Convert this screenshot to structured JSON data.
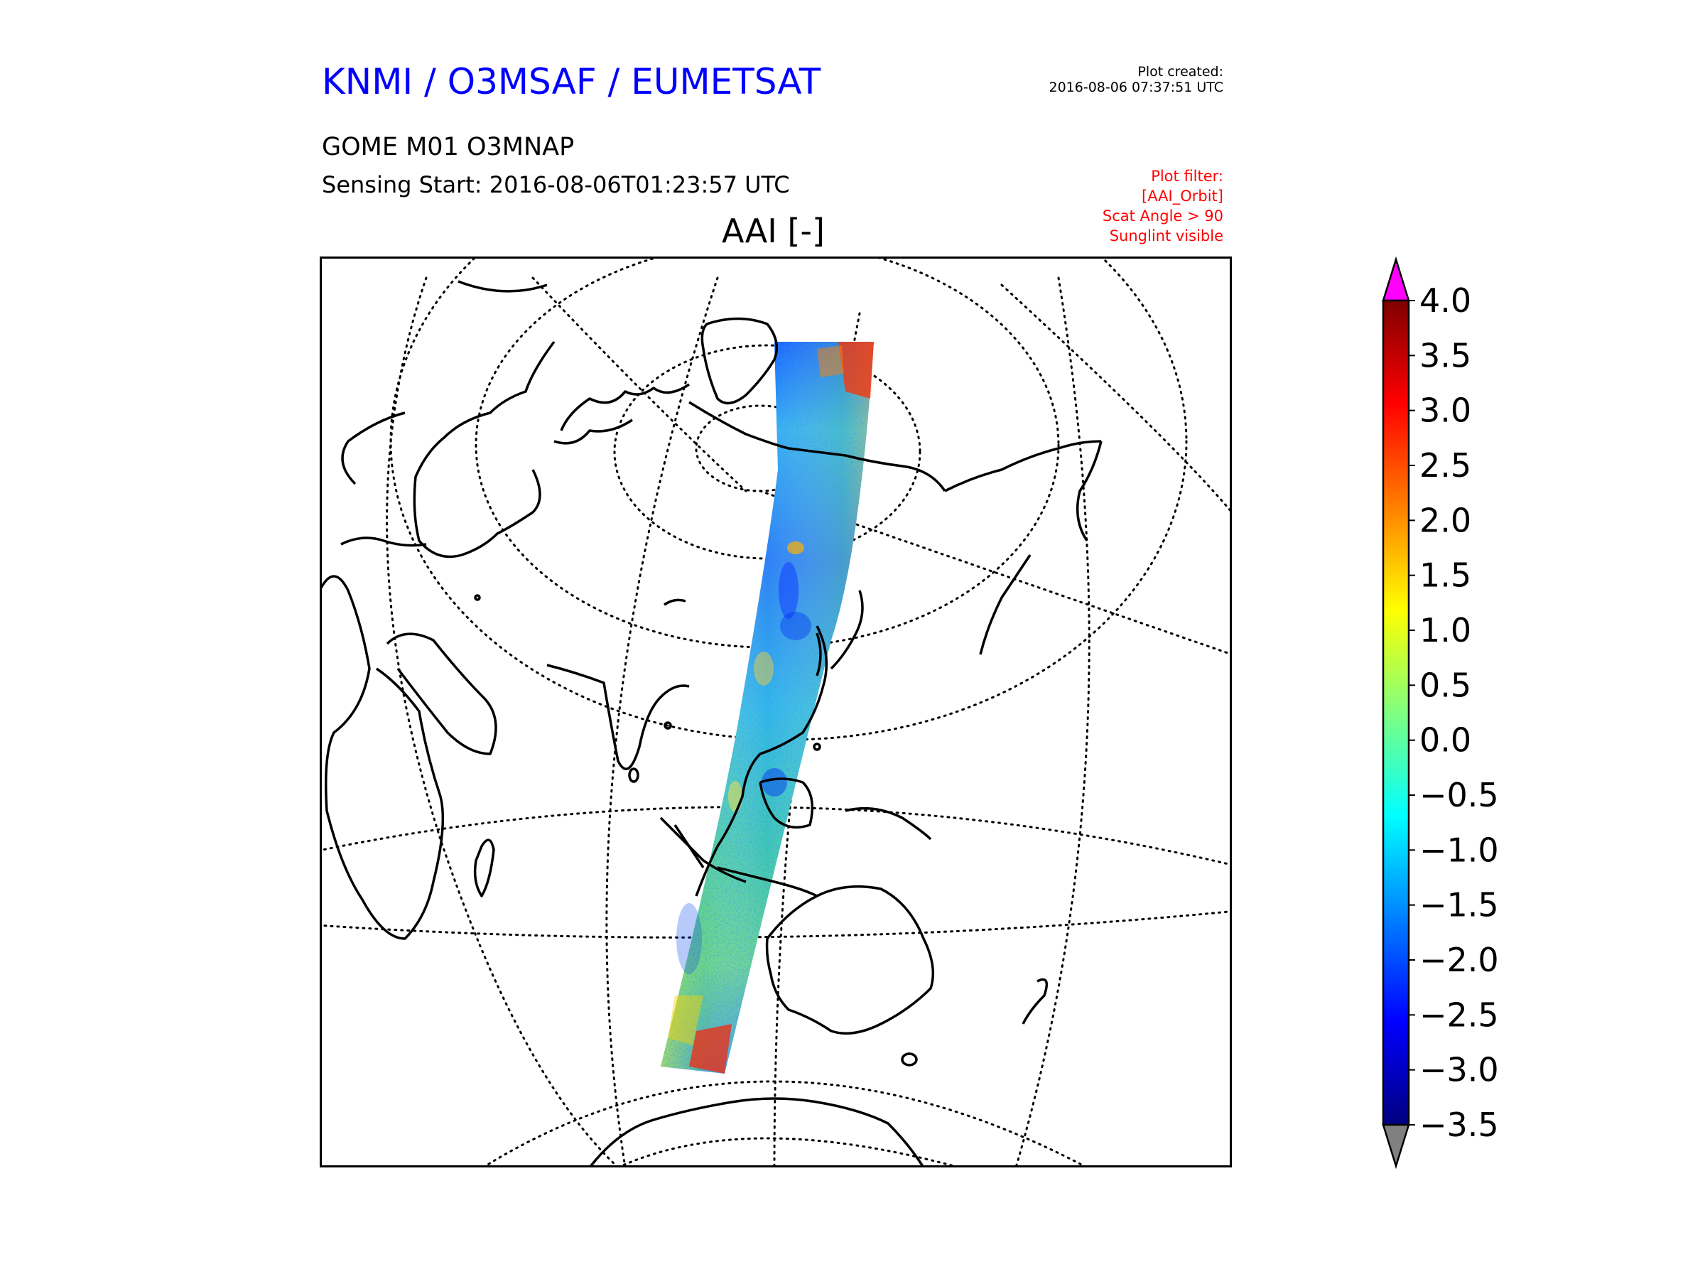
{
  "header": {
    "org_title": "KNMI / O3MSAF / EUMETSAT",
    "plot_created_label": "Plot created:",
    "plot_created_time": "2016-08-06 07:37:51 UTC",
    "product_name": "GOME M01 O3MNAP",
    "sensing_start": "Sensing Start: 2016-08-06T01:23:57 UTC",
    "map_title": "AAI [-]",
    "filters": [
      "Plot filter:",
      "[AAI_Orbit]",
      "Scat Angle > 90",
      "Sunglint visible"
    ]
  },
  "colorbar": {
    "ticks": [
      "4.0",
      "3.5",
      "3.0",
      "2.5",
      "2.0",
      "1.5",
      "1.0",
      "0.5",
      "0.0",
      "−0.5",
      "−1.0",
      "−1.5",
      "−2.0",
      "−2.5",
      "−3.0",
      "−3.5"
    ],
    "min": -3.5,
    "max": 4.0,
    "extend_max_color": "#ff00ff",
    "extend_min_color": "#808080",
    "colormap": [
      "#00007f",
      "#0000ff",
      "#007fff",
      "#00ffff",
      "#7fff7f",
      "#ffff00",
      "#ff7f00",
      "#ff0000",
      "#7f0000"
    ]
  },
  "map": {
    "coastline_color": "#000000",
    "graticule_style": "dotted",
    "swath": "GOME-2 Metop-A orbit from Arctic over East Asia to Southern Ocean"
  }
}
